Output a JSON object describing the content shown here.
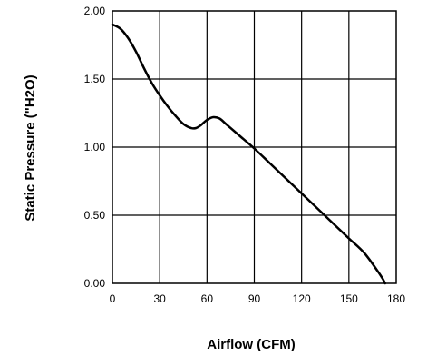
{
  "chart_data": {
    "type": "line",
    "title": "",
    "xlabel": "Airflow (CFM)",
    "ylabel": "Static Pressure  (\"H2O)",
    "xlim": [
      0,
      180
    ],
    "ylim": [
      0,
      2
    ],
    "x_ticks": [
      "0",
      "30",
      "60",
      "90",
      "120",
      "150",
      "180"
    ],
    "y_ticks": [
      "0.00",
      "0.50",
      "1.00",
      "1.50",
      "2.00"
    ],
    "grid": true,
    "colors": {
      "line": "#000000",
      "grid": "#000000"
    },
    "series": [
      {
        "x": [
          0,
          5,
          10,
          15,
          20,
          25,
          30,
          35,
          40,
          45,
          50,
          53,
          56,
          60,
          64,
          68,
          72,
          80,
          90,
          100,
          110,
          120,
          130,
          140,
          150,
          160,
          170,
          173
        ],
        "y": [
          1.9,
          1.87,
          1.8,
          1.7,
          1.58,
          1.47,
          1.38,
          1.3,
          1.23,
          1.17,
          1.14,
          1.14,
          1.16,
          1.2,
          1.22,
          1.21,
          1.17,
          1.09,
          0.99,
          0.88,
          0.77,
          0.66,
          0.55,
          0.44,
          0.33,
          0.22,
          0.06,
          0.0
        ]
      }
    ]
  }
}
